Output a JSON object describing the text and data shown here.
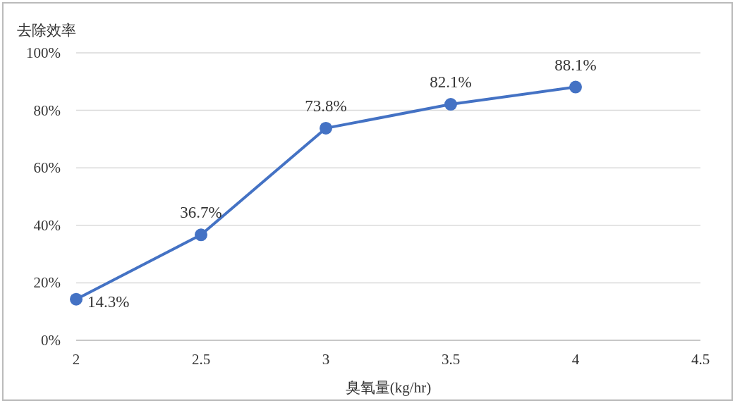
{
  "chart_data": {
    "type": "line",
    "xlabel": "臭氧量(kg/hr)",
    "ylabel": "去除效率",
    "x": [
      2,
      2.5,
      3,
      3.5,
      4
    ],
    "series": [
      {
        "color": "#4472c4",
        "values": [
          14.3,
          36.7,
          73.8,
          82.1,
          88.1
        ],
        "value_labels": [
          "14.3%",
          "36.7%",
          "73.8%",
          "82.1%",
          "88.1%"
        ]
      }
    ],
    "xlim": [
      2,
      4.5
    ],
    "xticks": [
      2,
      2.5,
      3,
      3.5,
      4,
      4.5
    ],
    "ylim": [
      0,
      100
    ],
    "yticks": [
      {
        "value": 0,
        "label": "0%"
      },
      {
        "value": 20,
        "label": "20%"
      },
      {
        "value": 40,
        "label": "40%"
      },
      {
        "value": 60,
        "label": "60%"
      },
      {
        "value": 80,
        "label": "80%"
      },
      {
        "value": 100,
        "label": "100%"
      }
    ],
    "grid": "y",
    "marker": "circle",
    "line_style": "solid"
  }
}
